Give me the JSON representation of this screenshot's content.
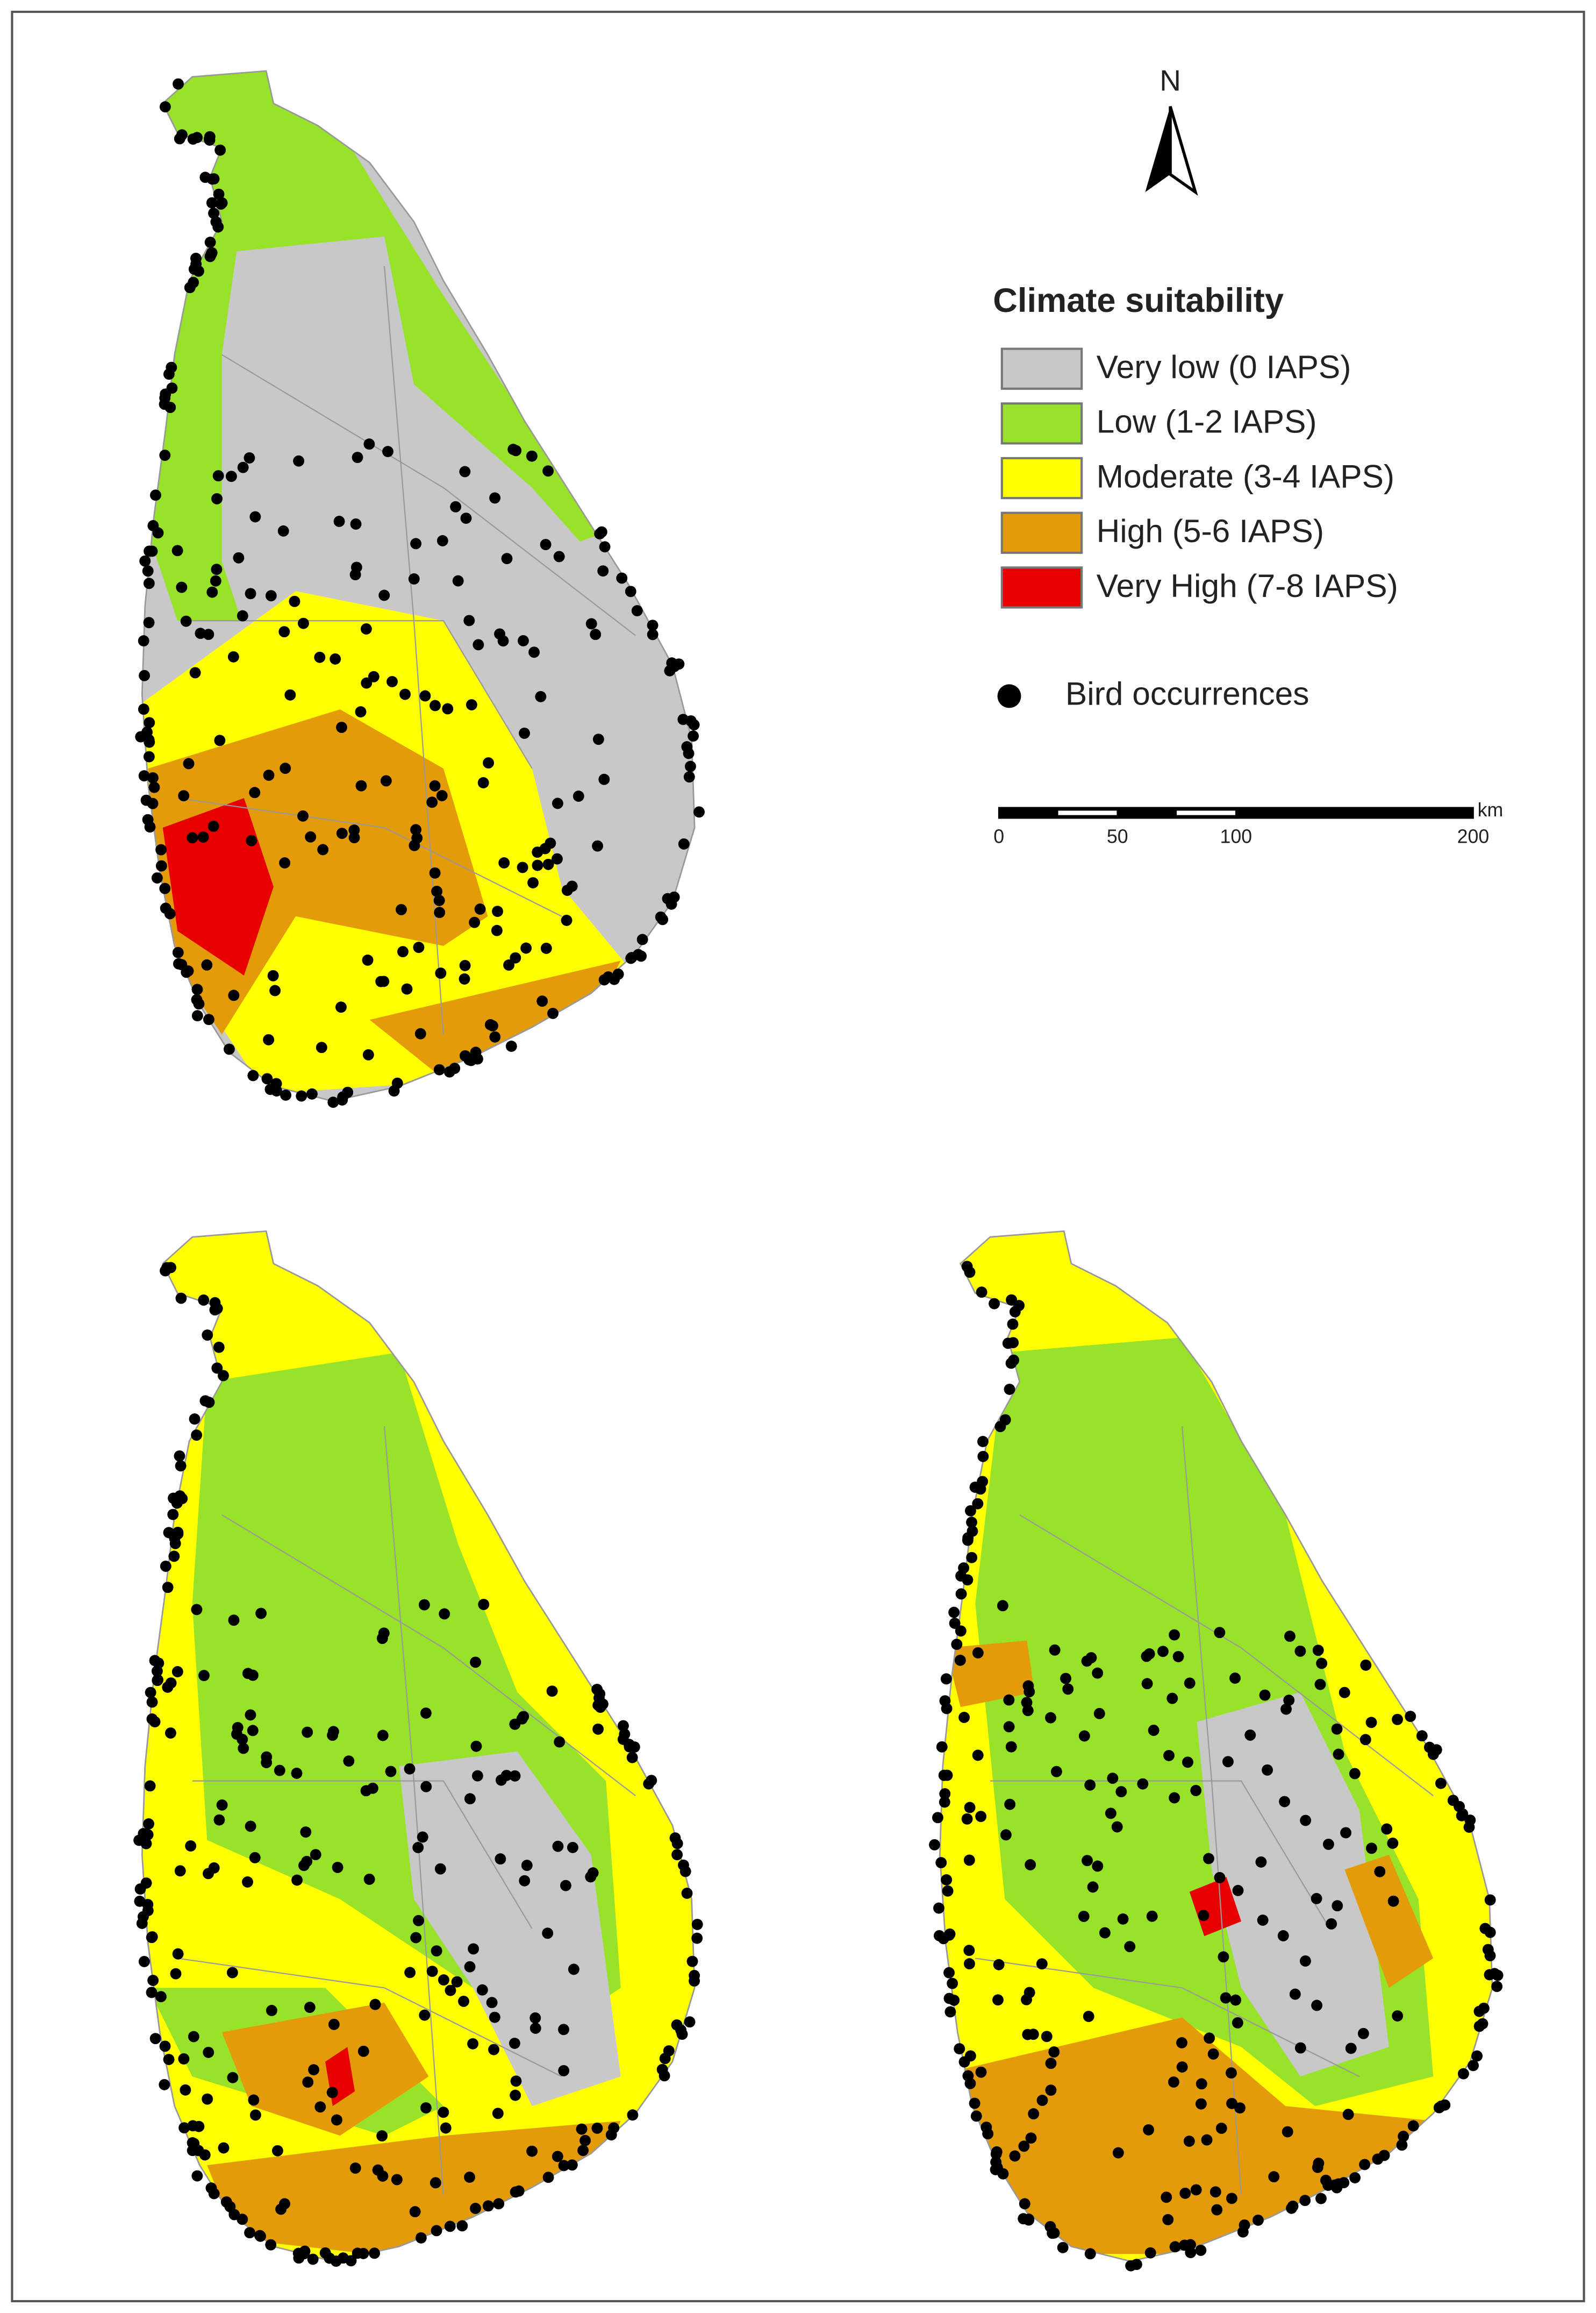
{
  "north_label": "N",
  "legend": {
    "title": "Climate suitability",
    "items": [
      {
        "label": "Very low (0 IAPS)",
        "color": "#c8c8c8"
      },
      {
        "label": "Low (1-2 IAPS)",
        "color": "#98e22a"
      },
      {
        "label": "Moderate (3-4 IAPS)",
        "color": "#ffff00"
      },
      {
        "label": "High (5-6 IAPS)",
        "color": "#e39b0a"
      },
      {
        "label": "Very High (7-8 IAPS)",
        "color": "#e60000"
      }
    ],
    "points": "Bird occurrences"
  },
  "scale_bar": {
    "unit": "km",
    "ticks": [
      0,
      50,
      100,
      200
    ]
  }
}
